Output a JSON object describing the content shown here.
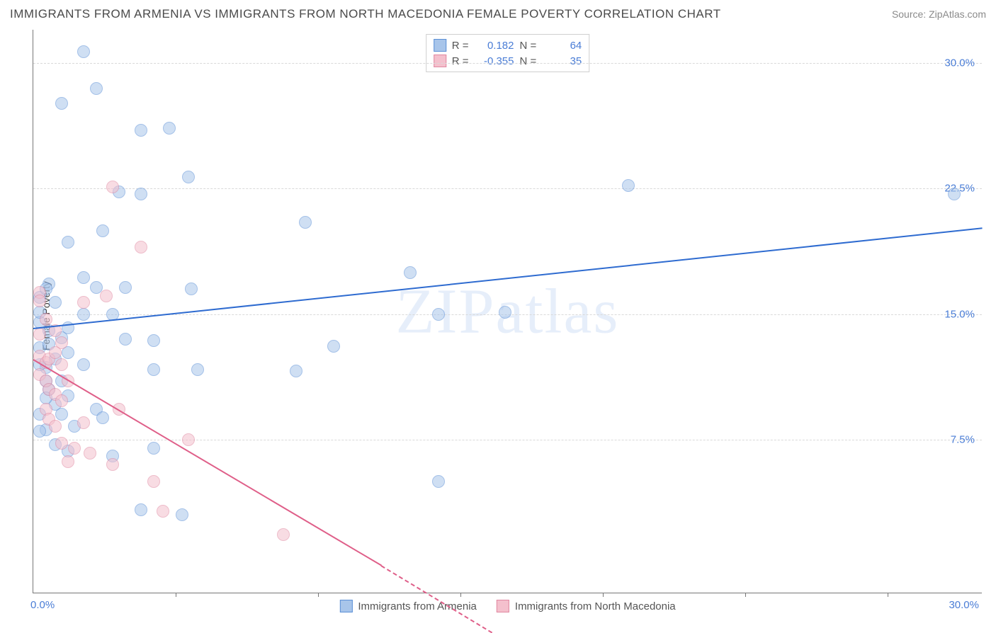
{
  "title": "IMMIGRANTS FROM ARMENIA VS IMMIGRANTS FROM NORTH MACEDONIA FEMALE POVERTY CORRELATION CHART",
  "source_label": "Source: ZipAtlas.com",
  "watermark": "ZIPatlas",
  "ylabel": "Female Poverty",
  "chart": {
    "type": "scatter",
    "xlim": [
      0,
      30
    ],
    "ylim": [
      0,
      32
    ],
    "xtick_left": "0.0%",
    "xtick_right": "30.0%",
    "ytick_labels": [
      "7.5%",
      "15.0%",
      "22.5%",
      "30.0%"
    ],
    "ytick_values": [
      7.5,
      15,
      22.5,
      30
    ],
    "xtick_marks": [
      4.5,
      9.0,
      13.5,
      18.0,
      22.5,
      27.0
    ],
    "background_color": "#ffffff",
    "grid_color": "#d9d9d9",
    "tick_color_blue": "#4a7dd6",
    "point_radius": 9,
    "point_opacity": 0.55,
    "series": [
      {
        "key": "armenia",
        "label": "Immigrants from Armenia",
        "fill": "#a8c5ea",
        "stroke": "#5b8fd6",
        "R": "0.182",
        "N": "64",
        "trend": {
          "x0": 0,
          "y0": 14.2,
          "x1": 30,
          "y1": 20.2,
          "color": "#2e6bd0"
        },
        "points": [
          [
            1.6,
            30.7
          ],
          [
            2.0,
            28.5
          ],
          [
            0.9,
            27.6
          ],
          [
            4.3,
            26.1
          ],
          [
            3.4,
            26.0
          ],
          [
            4.9,
            23.2
          ],
          [
            2.7,
            22.3
          ],
          [
            3.4,
            22.2
          ],
          [
            29.1,
            22.2
          ],
          [
            18.8,
            22.7
          ],
          [
            8.6,
            20.5
          ],
          [
            2.2,
            20.0
          ],
          [
            1.1,
            19.3
          ],
          [
            2.0,
            16.6
          ],
          [
            2.9,
            16.6
          ],
          [
            0.5,
            16.8
          ],
          [
            1.6,
            17.2
          ],
          [
            0.7,
            15.7
          ],
          [
            5.0,
            16.5
          ],
          [
            11.9,
            17.5
          ],
          [
            14.9,
            15.1
          ],
          [
            12.8,
            15.0
          ],
          [
            2.5,
            15.0
          ],
          [
            1.6,
            15.0
          ],
          [
            0.5,
            14.0
          ],
          [
            0.9,
            13.6
          ],
          [
            2.9,
            13.5
          ],
          [
            3.8,
            13.4
          ],
          [
            1.1,
            12.7
          ],
          [
            0.7,
            12.3
          ],
          [
            9.5,
            13.1
          ],
          [
            3.8,
            11.7
          ],
          [
            5.2,
            11.7
          ],
          [
            8.3,
            11.6
          ],
          [
            1.6,
            12.0
          ],
          [
            0.9,
            11.0
          ],
          [
            0.5,
            10.5
          ],
          [
            1.1,
            10.1
          ],
          [
            0.7,
            9.6
          ],
          [
            0.9,
            9.0
          ],
          [
            2.0,
            9.3
          ],
          [
            0.4,
            8.1
          ],
          [
            3.8,
            7.0
          ],
          [
            3.4,
            3.3
          ],
          [
            4.7,
            3.0
          ],
          [
            12.8,
            5.0
          ],
          [
            0.2,
            16.0
          ],
          [
            0.2,
            14.5
          ],
          [
            0.2,
            13.0
          ],
          [
            0.4,
            11.8
          ],
          [
            0.4,
            11.0
          ],
          [
            0.4,
            10.0
          ],
          [
            0.7,
            7.2
          ],
          [
            1.1,
            6.8
          ],
          [
            0.2,
            9.0
          ],
          [
            1.3,
            8.3
          ],
          [
            2.2,
            8.8
          ],
          [
            2.5,
            6.5
          ],
          [
            0.2,
            12.0
          ],
          [
            0.2,
            8.0
          ],
          [
            0.4,
            16.5
          ],
          [
            1.1,
            14.2
          ],
          [
            0.2,
            15.1
          ],
          [
            0.5,
            13.2
          ]
        ]
      },
      {
        "key": "macedonia",
        "label": "Immigrants from North Macedonia",
        "fill": "#f4c0cd",
        "stroke": "#e087a0",
        "R": "-0.355",
        "N": "35",
        "trend": {
          "x0": 0,
          "y0": 12.3,
          "x1": 11.0,
          "y1": 0,
          "color": "#df5f89"
        },
        "trend_ext": {
          "x0": 11.0,
          "y0": 0,
          "x1": 14.5,
          "y1": -4.0,
          "color": "#df5f89"
        },
        "points": [
          [
            2.5,
            22.6
          ],
          [
            3.4,
            19.0
          ],
          [
            2.3,
            16.1
          ],
          [
            1.6,
            15.7
          ],
          [
            0.7,
            14.0
          ],
          [
            0.9,
            13.3
          ],
          [
            0.2,
            16.3
          ],
          [
            0.2,
            15.8
          ],
          [
            0.4,
            14.7
          ],
          [
            0.2,
            13.8
          ],
          [
            0.2,
            12.5
          ],
          [
            0.4,
            12.1
          ],
          [
            0.5,
            12.3
          ],
          [
            0.7,
            12.7
          ],
          [
            0.9,
            12.0
          ],
          [
            0.2,
            11.4
          ],
          [
            0.4,
            11.0
          ],
          [
            0.5,
            10.5
          ],
          [
            0.7,
            10.2
          ],
          [
            0.9,
            9.8
          ],
          [
            1.1,
            11.0
          ],
          [
            0.4,
            9.3
          ],
          [
            0.5,
            8.7
          ],
          [
            0.7,
            8.3
          ],
          [
            1.6,
            8.5
          ],
          [
            2.7,
            9.3
          ],
          [
            0.9,
            7.3
          ],
          [
            1.3,
            7.0
          ],
          [
            1.8,
            6.7
          ],
          [
            1.1,
            6.2
          ],
          [
            2.5,
            6.0
          ],
          [
            4.9,
            7.5
          ],
          [
            3.8,
            5.0
          ],
          [
            4.1,
            3.2
          ],
          [
            7.9,
            1.8
          ]
        ]
      }
    ]
  },
  "stat_box": {
    "r_label": "R =",
    "n_label": "N ="
  }
}
